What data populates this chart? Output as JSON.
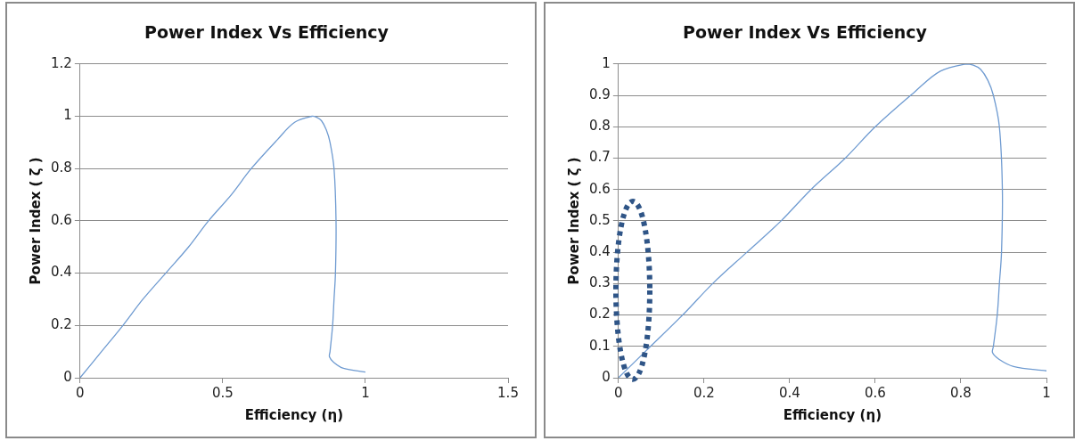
{
  "chart_data": [
    {
      "type": "line",
      "title": "Power Index Vs Efficiency",
      "xlabel": "Efficiency (η)",
      "ylabel": "Power Index ( ζ )",
      "x": [
        0,
        0.075,
        0.15,
        0.22,
        0.3,
        0.38,
        0.45,
        0.53,
        0.6,
        0.692,
        0.752,
        0.812,
        0.829,
        0.846,
        0.863,
        0.876,
        0.89,
        0.897,
        0.895,
        0.89,
        0.885,
        0.876,
        0.874,
        0.889,
        0.923,
        1
      ],
      "series": [
        {
          "color": "#6f9bd1",
          "values": [
            0,
            0.1,
            0.2,
            0.3,
            0.4,
            0.5,
            0.6,
            0.7,
            0.8,
            0.911,
            0.977,
            1,
            0.996,
            0.983,
            0.948,
            0.9,
            0.8,
            0.6,
            0.4,
            0.3,
            0.2,
            0.1,
            0.08,
            0.059,
            0.036,
            0.022
          ]
        }
      ],
      "xlim": [
        0,
        1.5
      ],
      "xticks": [
        0,
        0.5,
        1,
        1.5
      ],
      "ylim": [
        0,
        1.2
      ],
      "yticks": [
        0,
        0.2,
        0.4,
        0.6,
        0.8,
        1,
        1.2
      ],
      "grid": "y",
      "legend": false,
      "marker": "none"
    },
    {
      "type": "line",
      "title": "Power Index Vs Efficiency",
      "xlabel": "Efficiency (η)",
      "ylabel": "Power Index ( ζ )",
      "x": [
        0,
        0.075,
        0.15,
        0.22,
        0.3,
        0.38,
        0.45,
        0.53,
        0.6,
        0.692,
        0.752,
        0.812,
        0.829,
        0.846,
        0.863,
        0.876,
        0.89,
        0.897,
        0.895,
        0.89,
        0.885,
        0.876,
        0.874,
        0.889,
        0.923,
        1
      ],
      "series": [
        {
          "color": "#6f9bd1",
          "values": [
            0,
            0.1,
            0.2,
            0.3,
            0.4,
            0.5,
            0.6,
            0.7,
            0.8,
            0.911,
            0.977,
            1,
            0.996,
            0.983,
            0.948,
            0.9,
            0.8,
            0.6,
            0.4,
            0.3,
            0.2,
            0.1,
            0.08,
            0.059,
            0.036,
            0.022
          ]
        }
      ],
      "xlim": [
        0,
        1
      ],
      "xticks": [
        0,
        0.2,
        0.4,
        0.6,
        0.8,
        1
      ],
      "ylim": [
        0,
        1
      ],
      "yticks": [
        0,
        0.1,
        0.2,
        0.3,
        0.4,
        0.5,
        0.6,
        0.7,
        0.8,
        0.9,
        1
      ],
      "grid": "y",
      "legend": false,
      "marker": "none"
    }
  ]
}
